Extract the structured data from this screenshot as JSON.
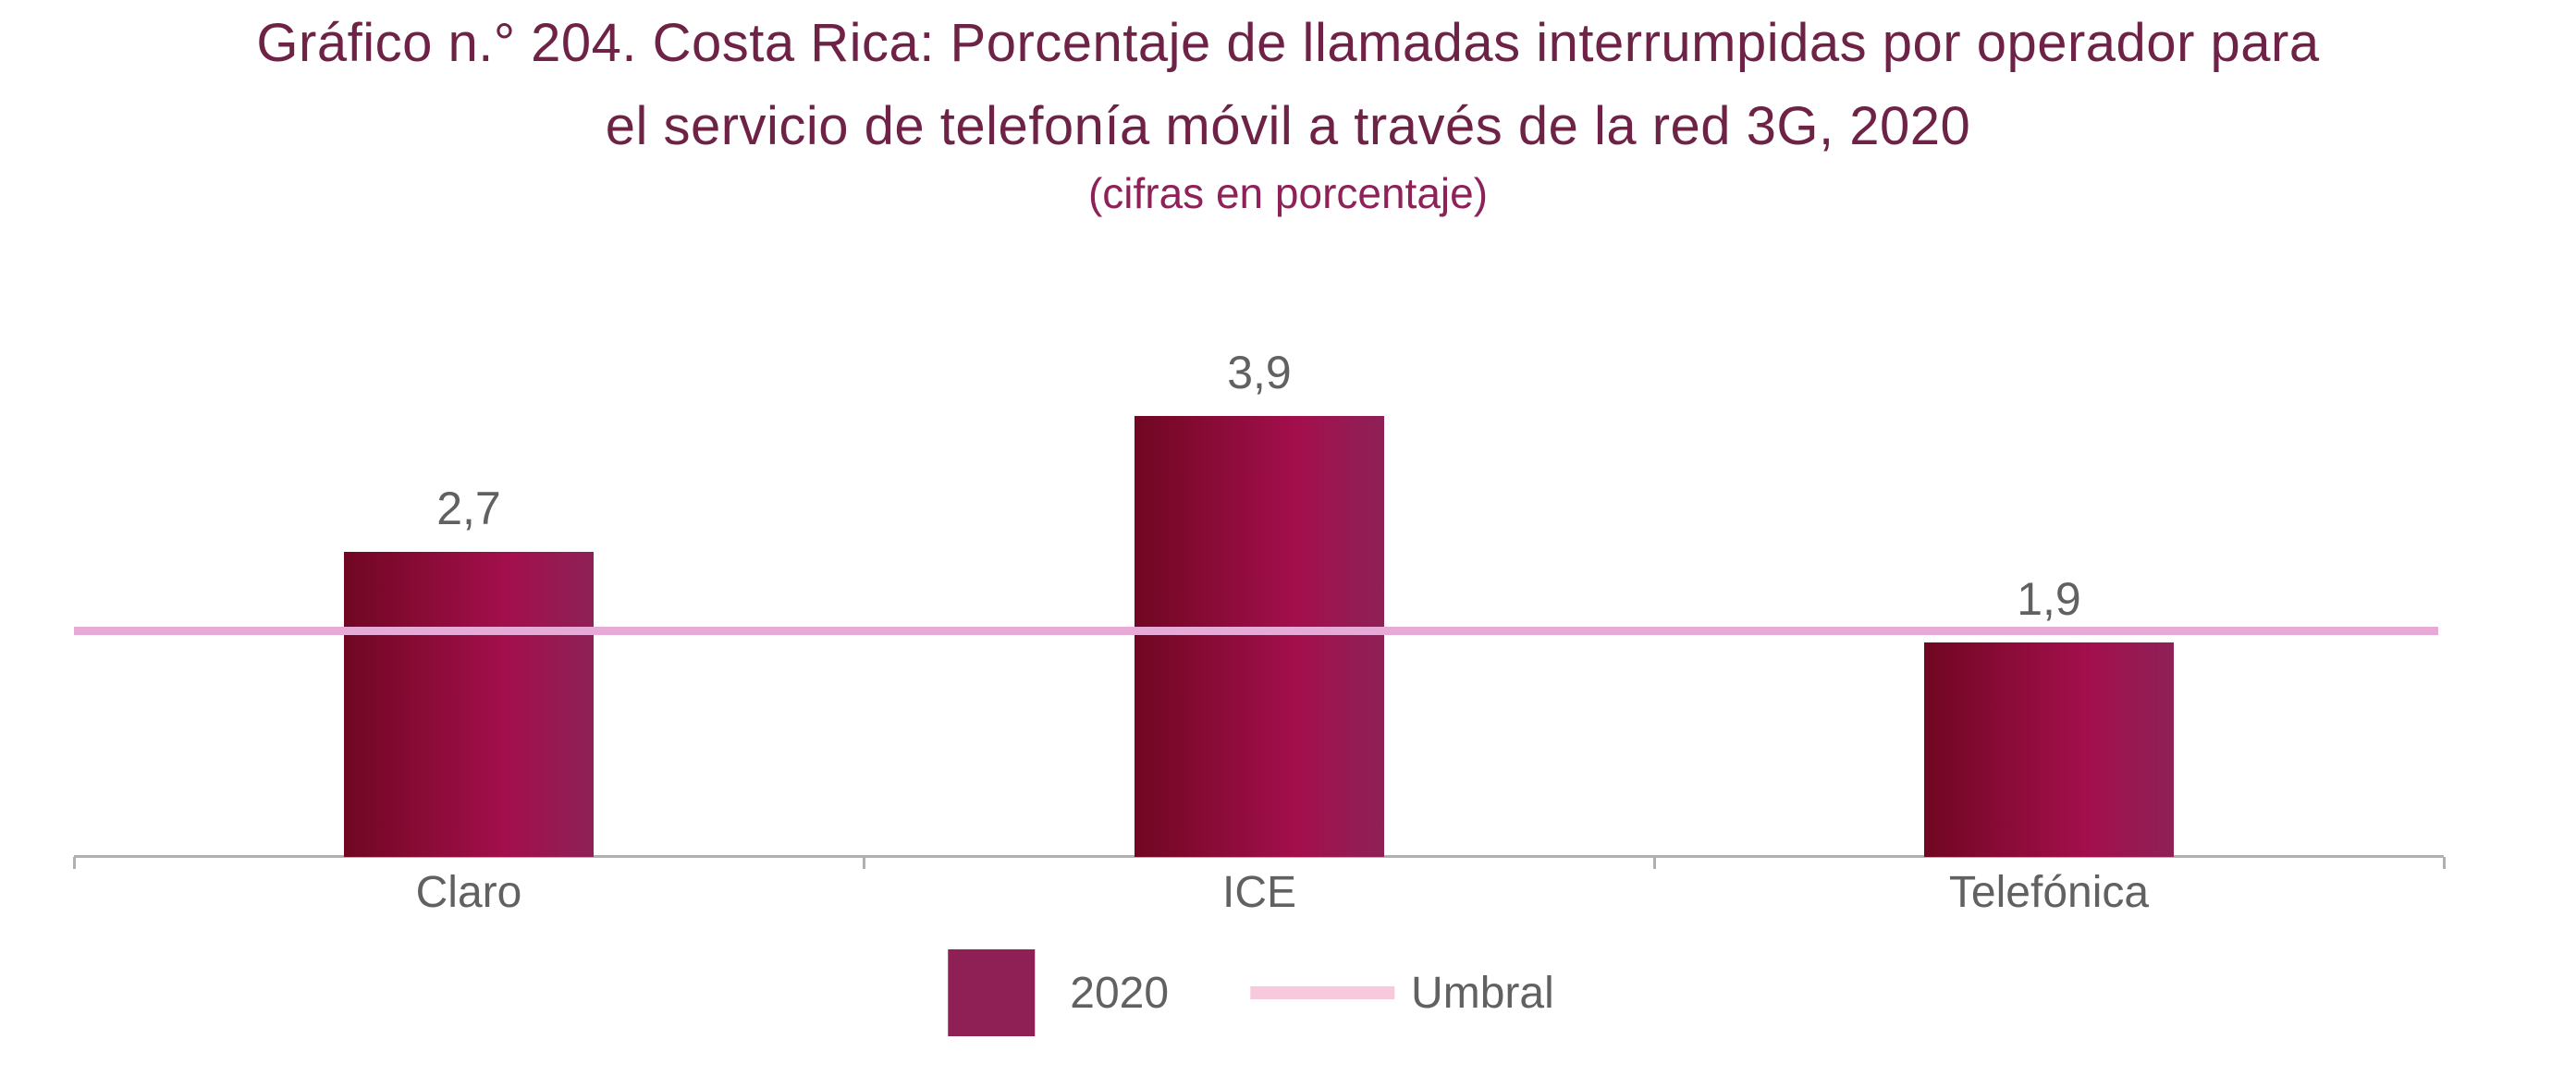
{
  "chart_data": {
    "type": "bar",
    "title": "Gráfico n.° 204. Costa Rica: Porcentaje de llamadas interrumpidas por operador para\nel servicio de telefonía móvil a través de la red 3G, 2020",
    "subtitle": "(cifras en porcentaje)",
    "categories": [
      "Claro",
      "ICE",
      "Telefónica"
    ],
    "series": [
      {
        "name": "2020",
        "values": [
          2.7,
          3.9,
          1.9
        ],
        "display_labels": [
          "2,7",
          "3,9",
          "1,9"
        ]
      }
    ],
    "threshold": {
      "name": "Umbral",
      "value": 2.0
    },
    "legend": {
      "position": "bottom",
      "entries": [
        "2020",
        "Umbral"
      ]
    },
    "y_axis": {
      "visible": false,
      "implied_min": 0,
      "implied_max": 4.5
    },
    "x_axis": {
      "visible": true
    },
    "grid": false
  },
  "colors": {
    "title": "#6E2346",
    "subtitle": "#8E2157",
    "label_gray": "#616161",
    "bar_gradient_left": "#700722",
    "bar_gradient_mid": "#A30F4C",
    "bar_gradient_right": "#8E2157",
    "legend_swatch": "#8E2055",
    "threshold_line": "#E7A9D6",
    "legend_threshold_line": "#F8C9DC",
    "axis_line": "#B0B0B0"
  }
}
